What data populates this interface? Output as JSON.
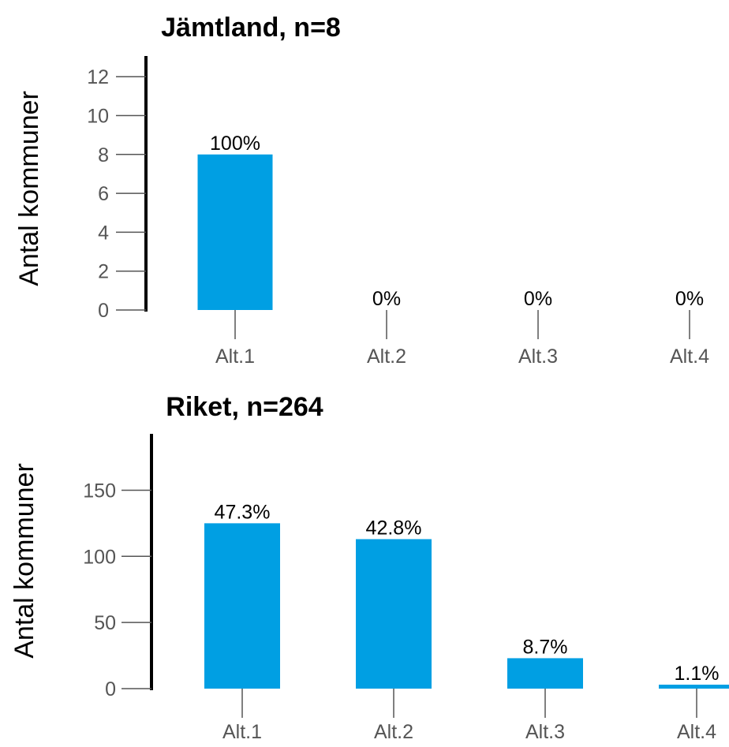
{
  "chart_data": [
    {
      "type": "bar",
      "title": "Jämtland, n=8",
      "ylabel": "Antal kommuner",
      "xlabel": "",
      "categories": [
        "Alt.1",
        "Alt.2",
        "Alt.3",
        "Alt.4"
      ],
      "values": [
        8,
        0,
        0,
        0
      ],
      "data_labels": [
        "100%",
        "0%",
        "0%",
        "0%"
      ],
      "yticks": [
        0,
        2,
        4,
        6,
        8,
        10,
        12
      ],
      "ylim": [
        0,
        13
      ],
      "grid": false,
      "legend": "none",
      "bar_color": "#009fe3"
    },
    {
      "type": "bar",
      "title": "Riket, n=264",
      "ylabel": "Antal kommuner",
      "xlabel": "",
      "categories": [
        "Alt.1",
        "Alt.2",
        "Alt.3",
        "Alt.4"
      ],
      "values": [
        125,
        113,
        23,
        3
      ],
      "data_labels": [
        "47.3%",
        "42.8%",
        "8.7%",
        "1.1%"
      ],
      "yticks": [
        0,
        50,
        100,
        150
      ],
      "ylim": [
        0,
        185
      ],
      "grid": false,
      "legend": "none",
      "bar_color": "#009fe3"
    }
  ]
}
